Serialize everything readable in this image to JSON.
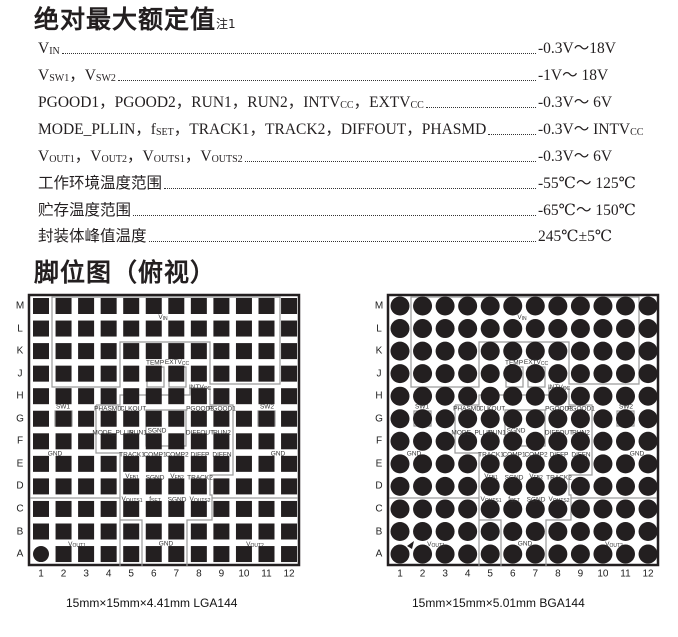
{
  "ratings": {
    "title": "绝对最大额定值",
    "note": "注1",
    "rows": [
      {
        "label": [
          {
            "t": "V"
          },
          {
            "t": "IN",
            "sub": true
          }
        ],
        "value": [
          {
            "t": "-0.3V～18V"
          }
        ]
      },
      {
        "label": [
          {
            "t": "V"
          },
          {
            "t": "SW1",
            "sub": true
          },
          {
            "t": "，V"
          },
          {
            "t": "SW2",
            "sub": true
          }
        ],
        "value": [
          {
            "t": "-1V～ 18V"
          }
        ]
      },
      {
        "label": [
          {
            "t": "PGOOD1，PGOOD2，RUN1，RUN2，INTV"
          },
          {
            "t": "CC",
            "sub": true
          },
          {
            "t": "，EXTV"
          },
          {
            "t": "CC",
            "sub": true
          }
        ],
        "value": [
          {
            "t": "-0.3V～ 6V"
          }
        ]
      },
      {
        "label": [
          {
            "t": "MODE_PLLIN，f"
          },
          {
            "t": "SET",
            "sub": true
          },
          {
            "t": "，TRACK1，TRACK2，DIFFOUT，PHASMD"
          }
        ],
        "value": [
          {
            "t": "-0.3V～ INTV"
          },
          {
            "t": "CC",
            "sub": true
          }
        ]
      },
      {
        "label": [
          {
            "t": "V"
          },
          {
            "t": "OUT1",
            "sub": true
          },
          {
            "t": "，V"
          },
          {
            "t": "OUT2",
            "sub": true
          },
          {
            "t": "，V"
          },
          {
            "t": "OUTS1",
            "sub": true
          },
          {
            "t": "，V"
          },
          {
            "t": "OUTS2",
            "sub": true
          }
        ],
        "value": [
          {
            "t": "-0.3V～ 6V"
          }
        ]
      },
      {
        "label": [
          {
            "t": "工作环境温度范围"
          }
        ],
        "value": [
          {
            "t": "-55℃～ 125℃"
          }
        ]
      },
      {
        "label": [
          {
            "t": "贮存温度范围"
          }
        ],
        "value": [
          {
            "t": "-65℃～ 150℃"
          }
        ]
      },
      {
        "label": [
          {
            "t": "封装体峰值温度"
          }
        ],
        "value": [
          {
            "t": "245℃±5℃"
          }
        ]
      }
    ]
  },
  "pinout": {
    "title": "脚位图（俯视）",
    "rows": [
      "M",
      "L",
      "K",
      "J",
      "H",
      "G",
      "F",
      "E",
      "D",
      "C",
      "B",
      "A"
    ],
    "cols": [
      "1",
      "2",
      "3",
      "4",
      "5",
      "6",
      "7",
      "8",
      "9",
      "10",
      "11",
      "12"
    ],
    "pin_labels": [
      [
        {
          "t": "V"
        },
        {
          "t": "IN",
          "sub": true
        }
      ],
      [
        {
          "t": "TEMP"
        }
      ],
      [
        {
          "t": "EXTV"
        },
        {
          "t": "CC",
          "sub": true
        }
      ],
      [
        {
          "t": "INTV"
        },
        {
          "t": "CC",
          "sub": true
        }
      ],
      [
        {
          "t": "SW1"
        }
      ],
      [
        {
          "t": "PHASMD"
        }
      ],
      [
        {
          "t": "CLKOUT"
        }
      ],
      [
        {
          "t": "PGOOD2"
        }
      ],
      [
        {
          "t": "PGOOD1"
        }
      ],
      [
        {
          "t": "SW2"
        }
      ],
      [
        {
          "t": "MODE_PLLIN"
        }
      ],
      [
        {
          "t": "RUN1"
        }
      ],
      [
        {
          "t": "SGND"
        }
      ],
      [
        {
          "t": "DIFFOUT"
        }
      ],
      [
        {
          "t": "RUN2"
        }
      ],
      [
        {
          "t": "GND"
        }
      ],
      [
        {
          "t": "TRACK1"
        }
      ],
      [
        {
          "t": "COMP1"
        }
      ],
      [
        {
          "t": "COMP2"
        }
      ],
      [
        {
          "t": "DIFFP"
        }
      ],
      [
        {
          "t": "DIFFN"
        }
      ],
      [
        {
          "t": "GND"
        }
      ],
      [
        {
          "t": "V"
        },
        {
          "t": "FB1",
          "sub": true
        }
      ],
      [
        {
          "t": "SGND"
        }
      ],
      [
        {
          "t": "V"
        },
        {
          "t": "FB2",
          "sub": true
        }
      ],
      [
        {
          "t": "TRACK2"
        }
      ],
      [
        {
          "t": "V"
        },
        {
          "t": "OUTS1",
          "sub": true
        }
      ],
      [
        {
          "t": "f"
        },
        {
          "t": "SET",
          "sub": true
        }
      ],
      [
        {
          "t": "SGND"
        }
      ],
      [
        {
          "t": "V"
        },
        {
          "t": "OUTS2",
          "sub": true
        }
      ],
      [
        {
          "t": "V"
        },
        {
          "t": "OUT1",
          "sub": true
        }
      ],
      [
        {
          "t": "GND"
        }
      ],
      [
        {
          "t": "V"
        },
        {
          "t": "OUT2",
          "sub": true
        }
      ]
    ],
    "packages": [
      {
        "caption": "15mm×15mm×4.41mm LGA144",
        "pad_shape": "square"
      },
      {
        "caption": "15mm×15mm×5.01mm BGA144",
        "pad_shape": "circle"
      }
    ]
  },
  "colors": {
    "pad": "#231f20",
    "outline": "#9a9a9a",
    "text": "#231f20"
  }
}
